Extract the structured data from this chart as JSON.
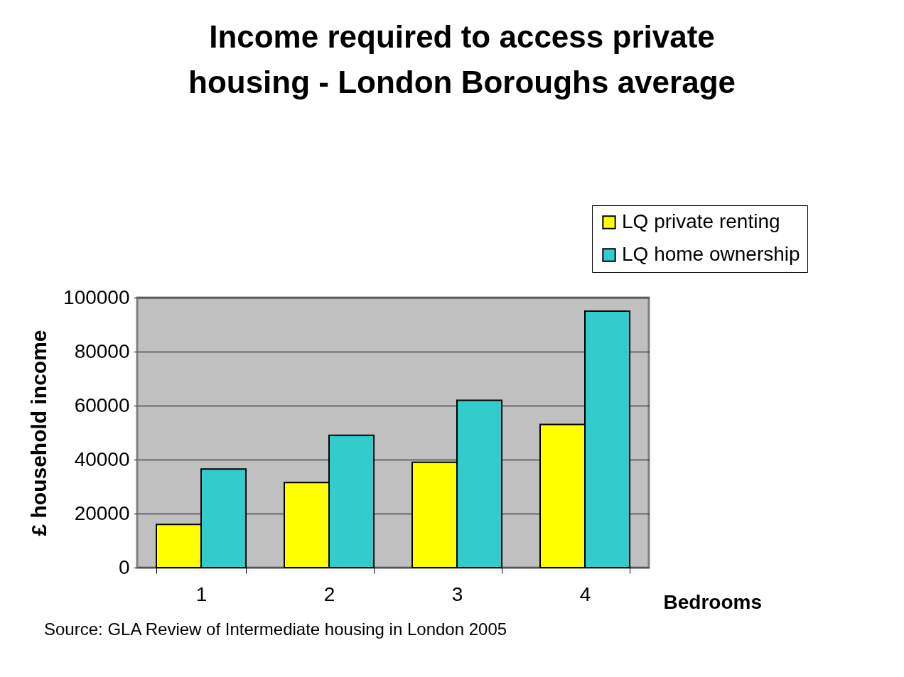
{
  "chart_data": {
    "type": "bar",
    "title": "Income required to access private housing - London Boroughs average",
    "xlabel": "Bedrooms",
    "ylabel": "£ household income",
    "categories": [
      "1",
      "2",
      "3",
      "4"
    ],
    "series": [
      {
        "name": "LQ private renting",
        "color": "#ffff00",
        "values": [
          16000,
          31500,
          39000,
          53000
        ]
      },
      {
        "name": "LQ home ownership",
        "color": "#33cccc",
        "values": [
          36500,
          49000,
          62000,
          95000
        ]
      }
    ],
    "ylim": [
      0,
      100000
    ],
    "yticks": [
      0,
      20000,
      40000,
      60000,
      80000,
      100000
    ],
    "grid": "y",
    "legend": "top right",
    "annotations": [
      "Source: GLA Review of Intermediate housing in London 2005"
    ]
  }
}
